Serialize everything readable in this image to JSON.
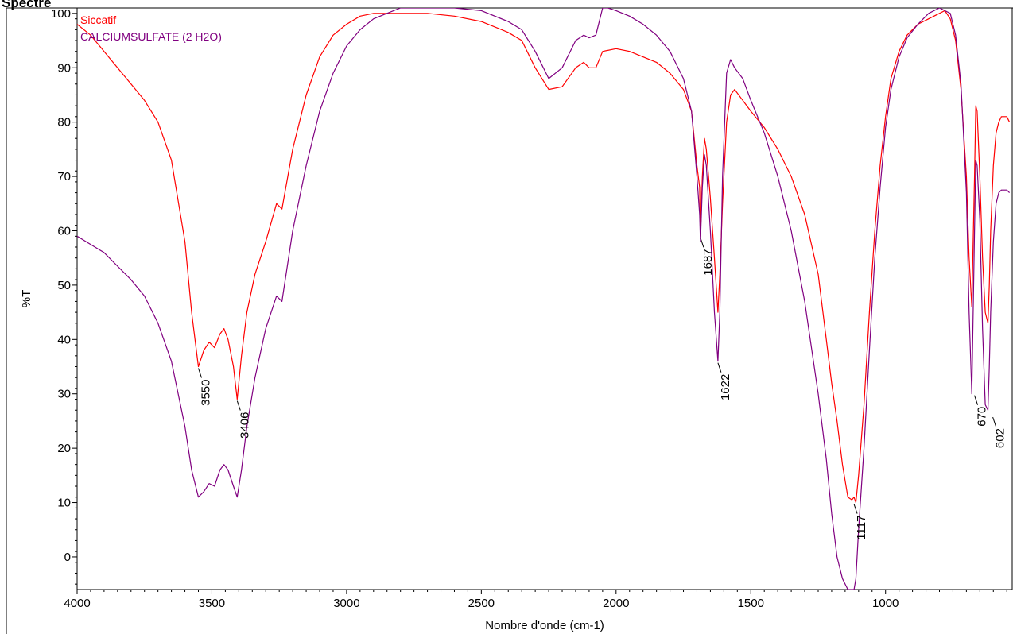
{
  "chart_title": "Spectre",
  "chart_data": {
    "type": "line",
    "title": "Spectre",
    "xlabel": "Nombre d'onde (cm-1)",
    "ylabel": "%T",
    "xlim": [
      4000,
      530
    ],
    "ylim": [
      -6,
      101
    ],
    "x_ticks": [
      4000,
      3500,
      3000,
      2500,
      2000,
      1500,
      1000
    ],
    "y_ticks": [
      0,
      10,
      20,
      30,
      40,
      50,
      60,
      70,
      80,
      90,
      100
    ],
    "grid": false,
    "legend_position": "top-left",
    "series": [
      {
        "name": "Siccatif",
        "color": "#ff0000",
        "points": [
          [
            4000,
            98
          ],
          [
            3950,
            96
          ],
          [
            3900,
            93
          ],
          [
            3850,
            90
          ],
          [
            3800,
            87
          ],
          [
            3750,
            84
          ],
          [
            3700,
            80
          ],
          [
            3650,
            73
          ],
          [
            3600,
            58
          ],
          [
            3575,
            45
          ],
          [
            3550,
            35
          ],
          [
            3530,
            38
          ],
          [
            3510,
            39.5
          ],
          [
            3490,
            38.5
          ],
          [
            3470,
            41
          ],
          [
            3455,
            42
          ],
          [
            3440,
            40
          ],
          [
            3420,
            35
          ],
          [
            3406,
            29
          ],
          [
            3390,
            37
          ],
          [
            3370,
            45
          ],
          [
            3340,
            52
          ],
          [
            3300,
            58
          ],
          [
            3260,
            65
          ],
          [
            3240,
            64
          ],
          [
            3200,
            75
          ],
          [
            3150,
            85
          ],
          [
            3100,
            92
          ],
          [
            3050,
            96
          ],
          [
            3000,
            98
          ],
          [
            2950,
            99.5
          ],
          [
            2900,
            100
          ],
          [
            2800,
            100
          ],
          [
            2700,
            100
          ],
          [
            2600,
            99.5
          ],
          [
            2500,
            98.5
          ],
          [
            2400,
            96.5
          ],
          [
            2350,
            95
          ],
          [
            2300,
            90
          ],
          [
            2250,
            86
          ],
          [
            2200,
            86.5
          ],
          [
            2150,
            90
          ],
          [
            2120,
            91
          ],
          [
            2100,
            90
          ],
          [
            2075,
            90
          ],
          [
            2050,
            93
          ],
          [
            2000,
            93.5
          ],
          [
            1950,
            93
          ],
          [
            1900,
            92
          ],
          [
            1850,
            91
          ],
          [
            1800,
            89
          ],
          [
            1750,
            86
          ],
          [
            1720,
            82
          ],
          [
            1700,
            72
          ],
          [
            1690,
            68
          ],
          [
            1687,
            59
          ],
          [
            1680,
            70
          ],
          [
            1672,
            77
          ],
          [
            1665,
            75
          ],
          [
            1650,
            66
          ],
          [
            1635,
            55
          ],
          [
            1622,
            45
          ],
          [
            1615,
            52
          ],
          [
            1605,
            65
          ],
          [
            1590,
            80
          ],
          [
            1575,
            85
          ],
          [
            1560,
            86
          ],
          [
            1530,
            84
          ],
          [
            1500,
            82
          ],
          [
            1450,
            79
          ],
          [
            1400,
            75
          ],
          [
            1350,
            70
          ],
          [
            1300,
            63
          ],
          [
            1250,
            52
          ],
          [
            1220,
            40
          ],
          [
            1200,
            32
          ],
          [
            1180,
            25
          ],
          [
            1160,
            17
          ],
          [
            1140,
            11
          ],
          [
            1125,
            10.5
          ],
          [
            1117,
            11
          ],
          [
            1110,
            10
          ],
          [
            1100,
            15
          ],
          [
            1080,
            28
          ],
          [
            1060,
            45
          ],
          [
            1040,
            60
          ],
          [
            1020,
            72
          ],
          [
            1000,
            81
          ],
          [
            980,
            88
          ],
          [
            950,
            93
          ],
          [
            920,
            96
          ],
          [
            880,
            98
          ],
          [
            840,
            99
          ],
          [
            800,
            100
          ],
          [
            780,
            100.5
          ],
          [
            760,
            99
          ],
          [
            740,
            95
          ],
          [
            720,
            86
          ],
          [
            700,
            70
          ],
          [
            690,
            55
          ],
          [
            680,
            46
          ],
          [
            670,
            70
          ],
          [
            665,
            83
          ],
          [
            660,
            82
          ],
          [
            650,
            70
          ],
          [
            640,
            55
          ],
          [
            630,
            45
          ],
          [
            620,
            43
          ],
          [
            615,
            50
          ],
          [
            610,
            60
          ],
          [
            600,
            72
          ],
          [
            590,
            78
          ],
          [
            580,
            80
          ],
          [
            570,
            81
          ],
          [
            560,
            81
          ],
          [
            550,
            81
          ],
          [
            540,
            80
          ]
        ]
      },
      {
        "name": "CALCIUMSULFATE (2 H2O)",
        "color": "#800080",
        "points": [
          [
            4000,
            59
          ],
          [
            3950,
            57.5
          ],
          [
            3900,
            56
          ],
          [
            3850,
            53.5
          ],
          [
            3800,
            51
          ],
          [
            3750,
            48
          ],
          [
            3700,
            43
          ],
          [
            3650,
            36
          ],
          [
            3600,
            24
          ],
          [
            3575,
            16
          ],
          [
            3550,
            11
          ],
          [
            3530,
            12
          ],
          [
            3510,
            13.5
          ],
          [
            3490,
            13
          ],
          [
            3470,
            16
          ],
          [
            3455,
            17
          ],
          [
            3440,
            16
          ],
          [
            3420,
            13
          ],
          [
            3406,
            11
          ],
          [
            3390,
            16
          ],
          [
            3370,
            24
          ],
          [
            3340,
            33
          ],
          [
            3300,
            42
          ],
          [
            3260,
            48
          ],
          [
            3240,
            47
          ],
          [
            3200,
            60
          ],
          [
            3150,
            72
          ],
          [
            3100,
            82
          ],
          [
            3050,
            89
          ],
          [
            3000,
            94
          ],
          [
            2950,
            97
          ],
          [
            2900,
            99
          ],
          [
            2850,
            100
          ],
          [
            2800,
            101
          ],
          [
            2700,
            101
          ],
          [
            2600,
            101
          ],
          [
            2500,
            100.5
          ],
          [
            2400,
            98.5
          ],
          [
            2350,
            97
          ],
          [
            2300,
            93
          ],
          [
            2250,
            88
          ],
          [
            2200,
            90
          ],
          [
            2150,
            95
          ],
          [
            2120,
            96
          ],
          [
            2100,
            95.5
          ],
          [
            2075,
            96
          ],
          [
            2050,
            101
          ],
          [
            2030,
            101
          ],
          [
            2000,
            100.5
          ],
          [
            1950,
            99.5
          ],
          [
            1900,
            98
          ],
          [
            1850,
            96
          ],
          [
            1800,
            93
          ],
          [
            1750,
            88
          ],
          [
            1720,
            82
          ],
          [
            1700,
            70
          ],
          [
            1690,
            63
          ],
          [
            1687,
            58
          ],
          [
            1680,
            68
          ],
          [
            1672,
            74
          ],
          [
            1665,
            72
          ],
          [
            1650,
            60
          ],
          [
            1635,
            45
          ],
          [
            1622,
            36
          ],
          [
            1615,
            45
          ],
          [
            1605,
            70
          ],
          [
            1590,
            89
          ],
          [
            1575,
            91.5
          ],
          [
            1560,
            90
          ],
          [
            1530,
            88
          ],
          [
            1500,
            84
          ],
          [
            1450,
            78
          ],
          [
            1400,
            70
          ],
          [
            1350,
            60
          ],
          [
            1300,
            47
          ],
          [
            1250,
            30
          ],
          [
            1220,
            18
          ],
          [
            1200,
            8
          ],
          [
            1180,
            0
          ],
          [
            1160,
            -4
          ],
          [
            1140,
            -6
          ],
          [
            1125,
            -6
          ],
          [
            1117,
            -6
          ],
          [
            1110,
            -4
          ],
          [
            1100,
            5
          ],
          [
            1080,
            20
          ],
          [
            1060,
            38
          ],
          [
            1040,
            55
          ],
          [
            1020,
            68
          ],
          [
            1000,
            79
          ],
          [
            980,
            86
          ],
          [
            950,
            92
          ],
          [
            920,
            95.5
          ],
          [
            880,
            98
          ],
          [
            840,
            100
          ],
          [
            800,
            101
          ],
          [
            780,
            100.5
          ],
          [
            760,
            100
          ],
          [
            740,
            96
          ],
          [
            720,
            87
          ],
          [
            700,
            67
          ],
          [
            690,
            45
          ],
          [
            680,
            30
          ],
          [
            670,
            60
          ],
          [
            665,
            73
          ],
          [
            660,
            72
          ],
          [
            650,
            62
          ],
          [
            640,
            42
          ],
          [
            630,
            28
          ],
          [
            620,
            27
          ],
          [
            615,
            35
          ],
          [
            610,
            45
          ],
          [
            600,
            58
          ],
          [
            590,
            65
          ],
          [
            580,
            67
          ],
          [
            570,
            67.5
          ],
          [
            560,
            67.5
          ],
          [
            550,
            67.5
          ],
          [
            540,
            67
          ]
        ]
      }
    ],
    "annotations": [
      {
        "label": "3550",
        "x": 3550,
        "y": 35
      },
      {
        "label": "3406",
        "x": 3406,
        "y": 29
      },
      {
        "label": "1687",
        "x": 1687,
        "y": 59
      },
      {
        "label": "1622",
        "x": 1622,
        "y": 36
      },
      {
        "label": "1117",
        "x": 1117,
        "y": 10
      },
      {
        "label": "670",
        "x": 670,
        "y": 30
      },
      {
        "label": "602",
        "x": 602,
        "y": 26
      }
    ]
  }
}
